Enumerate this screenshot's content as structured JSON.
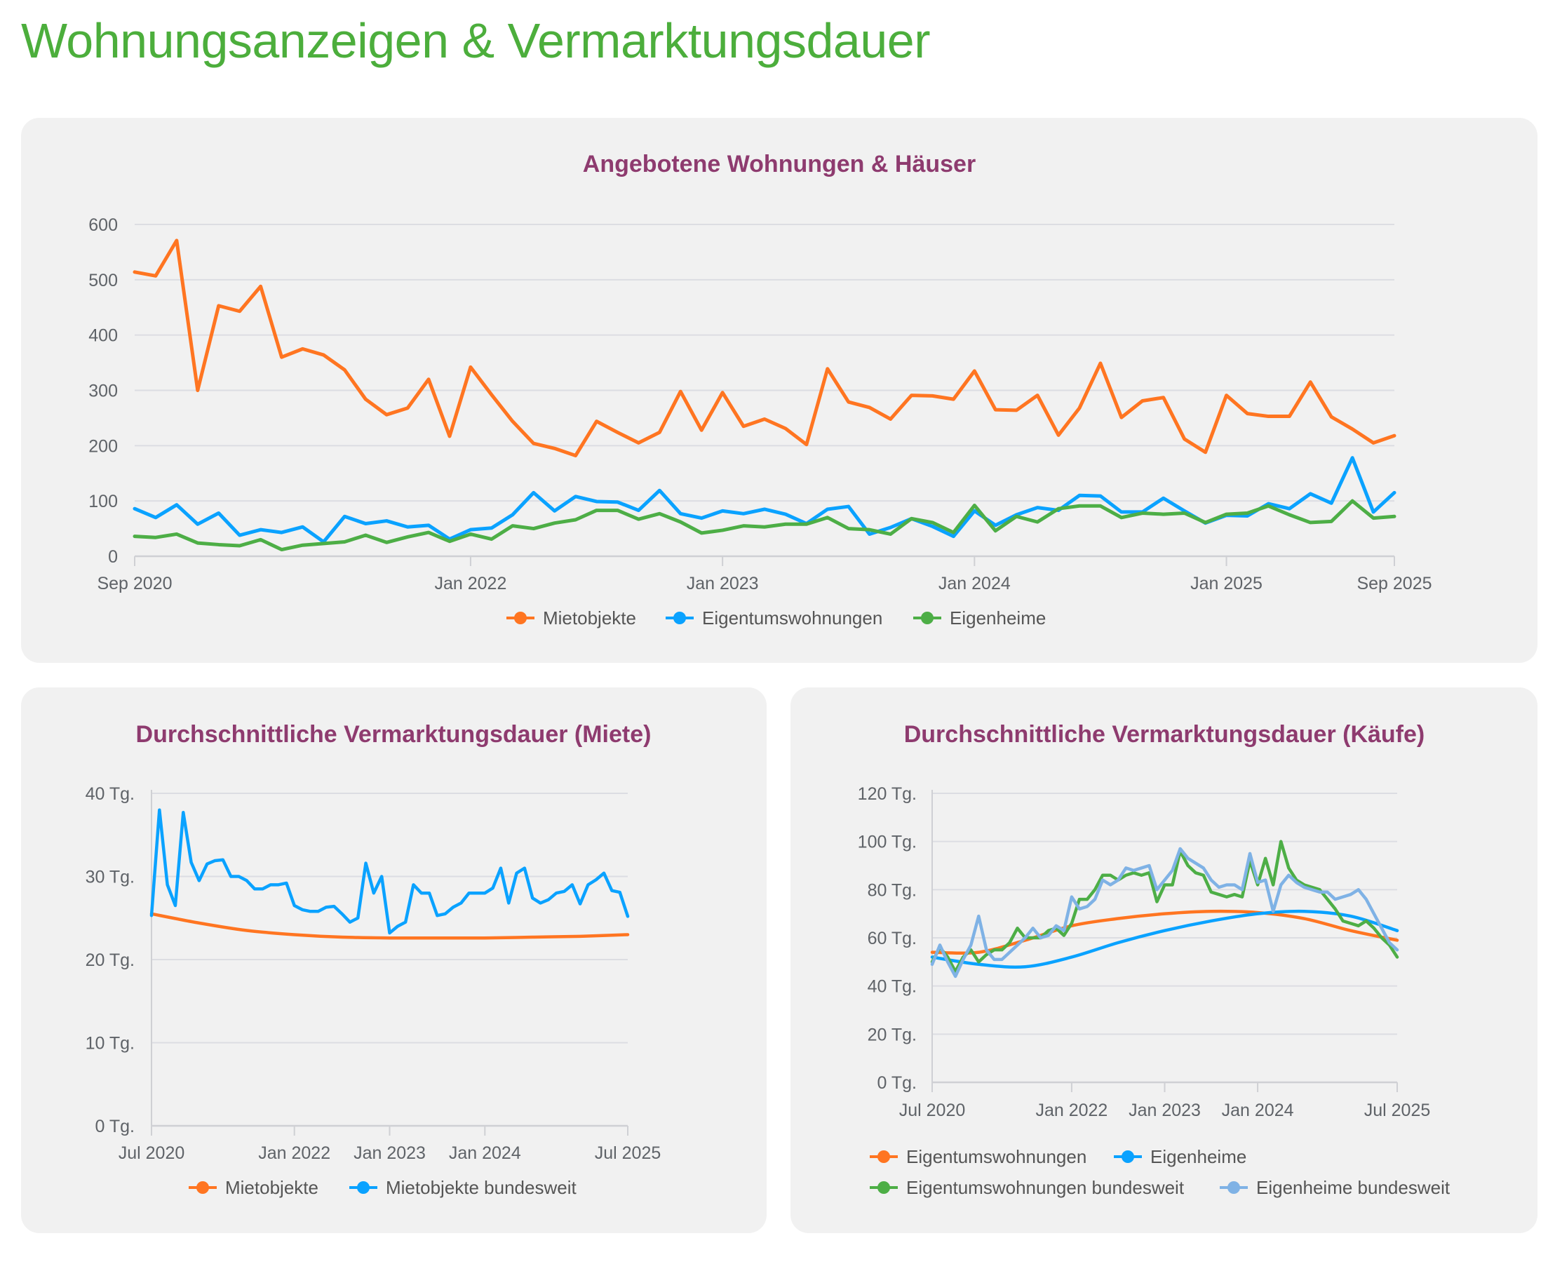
{
  "page": {
    "title": "Wohnungsanzeigen & Vermarktungsdauer"
  },
  "colors": {
    "orange": "#ff7521",
    "blue": "#0aa2ff",
    "green": "#4dae46",
    "light_blue": "#7fb2e5",
    "title": "#4cae3c",
    "chart_title": "#8e3b6f",
    "panel": "#f1f1f1"
  },
  "chart_data": [
    {
      "type": "line",
      "title": "Angebotene Wohnungen & Häuser",
      "x_range": [
        "Sep 2020",
        "Sep 2025"
      ],
      "frequency": "monthly",
      "x_ticks": [
        "Sep 2020",
        "Jan 2022",
        "Jan 2023",
        "Jan 2024",
        "Jan 2025",
        "Sep 2025"
      ],
      "y_ticks": [
        {
          "v": 0,
          "label": "0"
        },
        {
          "v": 100,
          "label": "100"
        },
        {
          "v": 200,
          "label": "200"
        },
        {
          "v": 300,
          "label": "300"
        },
        {
          "v": 400,
          "label": "400"
        },
        {
          "v": 500,
          "label": "500"
        },
        {
          "v": 600,
          "label": "600"
        }
      ],
      "ylim": [
        0,
        600
      ],
      "grid": true,
      "legend": "bottom",
      "series": [
        {
          "name": "Mietobjekte",
          "color": "#ff7521",
          "values": [
            514,
            507,
            571,
            300,
            453,
            443,
            488,
            360,
            375,
            364,
            337,
            284,
            256,
            268,
            320,
            217,
            342,
            292,
            244,
            204,
            195,
            182,
            244,
            224,
            205,
            224,
            298,
            228,
            296,
            235,
            248,
            231,
            202,
            339,
            279,
            269,
            248,
            291,
            290,
            284,
            335,
            265,
            264,
            291,
            219,
            268,
            349,
            251,
            281,
            287,
            212,
            188,
            291,
            258,
            253,
            253,
            315,
            252,
            230,
            205,
            218
          ]
        },
        {
          "name": "Eigentumswohnungen",
          "color": "#0aa2ff",
          "values": [
            86,
            70,
            93,
            58,
            78,
            38,
            48,
            43,
            53,
            26,
            72,
            59,
            64,
            53,
            56,
            31,
            48,
            51,
            75,
            115,
            82,
            108,
            99,
            98,
            83,
            119,
            77,
            69,
            82,
            77,
            85,
            76,
            59,
            85,
            90,
            40,
            52,
            68,
            54,
            36,
            82,
            56,
            75,
            88,
            83,
            110,
            109,
            80,
            80,
            105,
            82,
            60,
            74,
            73,
            95,
            86,
            113,
            96,
            178,
            80,
            115
          ]
        },
        {
          "name": "Eigenheime",
          "color": "#4dae46",
          "values": [
            36,
            34,
            40,
            24,
            21,
            19,
            30,
            12,
            20,
            23,
            26,
            38,
            25,
            35,
            43,
            27,
            40,
            31,
            55,
            50,
            60,
            66,
            83,
            83,
            67,
            77,
            62,
            42,
            47,
            55,
            53,
            58,
            58,
            70,
            50,
            48,
            40,
            68,
            61,
            43,
            92,
            46,
            72,
            62,
            86,
            91,
            91,
            70,
            78,
            76,
            78,
            61,
            76,
            78,
            91,
            75,
            61,
            63,
            100,
            69,
            72
          ]
        }
      ]
    },
    {
      "type": "line",
      "title": "Durchschnittliche Vermarktungsdauer (Miete)",
      "x_range": [
        "Jul 2020",
        "Jul 2025"
      ],
      "frequency": "monthly",
      "x_ticks": [
        "Jul 2020",
        "Jan 2022",
        "Jan 2023",
        "Jan 2024",
        "Jul 2025"
      ],
      "y_ticks": [
        {
          "v": 0,
          "label": "0 Tg."
        },
        {
          "v": 10,
          "label": "10 Tg."
        },
        {
          "v": 20,
          "label": "20 Tg."
        },
        {
          "v": 30,
          "label": "30 Tg."
        },
        {
          "v": 40,
          "label": "40 Tg."
        }
      ],
      "ylim": [
        0,
        40
      ],
      "grid": true,
      "legend": "bottom",
      "series": [
        {
          "name": "Mietobjekte",
          "color": "#ff7521",
          "smooth": true,
          "points": [
            {
              "x": "Jul 2020",
              "y": 25.5
            },
            {
              "x": "Jan 2021",
              "y": 24.4
            },
            {
              "x": "Jul 2021",
              "y": 23.5
            },
            {
              "x": "Jan 2022",
              "y": 23.0
            },
            {
              "x": "Jul 2022",
              "y": 22.7
            },
            {
              "x": "Jan 2023",
              "y": 22.6
            },
            {
              "x": "Jul 2023",
              "y": 22.6
            },
            {
              "x": "Jan 2024",
              "y": 22.6
            },
            {
              "x": "Jul 2024",
              "y": 22.7
            },
            {
              "x": "Jan 2025",
              "y": 22.8
            },
            {
              "x": "Jul 2025",
              "y": 23.0
            }
          ]
        },
        {
          "name": "Mietobjekte bundesweit",
          "color": "#0aa2ff",
          "values": [
            25.3,
            38,
            29,
            26.5,
            37.7,
            31.7,
            29.5,
            31.5,
            31.9,
            32,
            30,
            30,
            29.5,
            28.5,
            28.5,
            29,
            29,
            29.2,
            26.5,
            26,
            25.8,
            25.8,
            26.3,
            26.4,
            25.5,
            24.5,
            25,
            31.6,
            28,
            30,
            23.2,
            24,
            24.5,
            29,
            28,
            28,
            25.3,
            25.5,
            26.3,
            26.8,
            28,
            28,
            28,
            28.6,
            31,
            26.8,
            30.4,
            31,
            27.4,
            26.8,
            27.2,
            28,
            28.2,
            29,
            26.7,
            29,
            29.6,
            30.4,
            28.3,
            28.1,
            25.2
          ]
        }
      ]
    },
    {
      "type": "line",
      "title": "Durchschnittliche Vermarktungsdauer (Käufe)",
      "x_range": [
        "Jul 2020",
        "Jul 2025"
      ],
      "frequency": "monthly",
      "x_ticks": [
        "Jul 2020",
        "Jan 2022",
        "Jan 2023",
        "Jan 2024",
        "Jul 2025"
      ],
      "y_ticks": [
        {
          "v": 0,
          "label": "0 Tg."
        },
        {
          "v": 20,
          "label": "20 Tg."
        },
        {
          "v": 40,
          "label": "40 Tg."
        },
        {
          "v": 60,
          "label": "60 Tg."
        },
        {
          "v": 80,
          "label": "80 Tg."
        },
        {
          "v": 100,
          "label": "100 Tg."
        },
        {
          "v": 120,
          "label": "120 Tg."
        }
      ],
      "ylim": [
        0,
        120
      ],
      "grid": true,
      "legend": "bottom",
      "series": [
        {
          "name": "Eigentumswohnungen",
          "color": "#ff7521",
          "smooth": true,
          "points": [
            {
              "x": "Jul 2020",
              "y": 54
            },
            {
              "x": "Jan 2021",
              "y": 54
            },
            {
              "x": "Jul 2021",
              "y": 59
            },
            {
              "x": "Jan 2022",
              "y": 65
            },
            {
              "x": "Jul 2022",
              "y": 68
            },
            {
              "x": "Jan 2023",
              "y": 70
            },
            {
              "x": "Jul 2023",
              "y": 71
            },
            {
              "x": "Jan 2024",
              "y": 70.5
            },
            {
              "x": "Jul 2024",
              "y": 68
            },
            {
              "x": "Jan 2025",
              "y": 63
            },
            {
              "x": "Jul 2025",
              "y": 59
            }
          ]
        },
        {
          "name": "Eigenheime",
          "color": "#0aa2ff",
          "smooth": true,
          "points": [
            {
              "x": "Jul 2020",
              "y": 52
            },
            {
              "x": "Jan 2021",
              "y": 49
            },
            {
              "x": "Jul 2021",
              "y": 48
            },
            {
              "x": "Jan 2022",
              "y": 52
            },
            {
              "x": "Jul 2022",
              "y": 58
            },
            {
              "x": "Jan 2023",
              "y": 63
            },
            {
              "x": "Jul 2023",
              "y": 67
            },
            {
              "x": "Jan 2024",
              "y": 70
            },
            {
              "x": "Jul 2024",
              "y": 71
            },
            {
              "x": "Jan 2025",
              "y": 69
            },
            {
              "x": "Jul 2025",
              "y": 63
            }
          ]
        },
        {
          "name": "Eigentumswohnungen bundesweit",
          "color": "#4dae46",
          "values": [
            50,
            56,
            52,
            46,
            52,
            55,
            50,
            53,
            55,
            55,
            58,
            64,
            60,
            60,
            60,
            63,
            64,
            61,
            66,
            76,
            76,
            80,
            86,
            86,
            84,
            86,
            87,
            86,
            87,
            75,
            82,
            82,
            96,
            90,
            87,
            86,
            79,
            78,
            77,
            78,
            77,
            92,
            82,
            93,
            82,
            100,
            89,
            84,
            82,
            81,
            80,
            76,
            72,
            67,
            66,
            65,
            67,
            64,
            60,
            57,
            52
          ]
        },
        {
          "name": "Eigenheime bundesweit",
          "color": "#7fb2e5",
          "values": [
            49,
            57,
            50,
            44,
            51,
            57,
            69,
            55,
            51,
            51,
            54,
            57,
            60,
            64,
            60,
            61,
            65,
            63,
            77,
            72,
            73,
            76,
            84,
            82,
            84,
            89,
            88,
            89,
            90,
            80,
            84,
            88,
            97,
            93,
            91,
            89,
            84,
            81,
            82,
            82,
            80,
            95,
            83,
            84,
            71,
            82,
            86,
            83,
            81,
            80,
            79,
            79,
            76,
            77,
            78,
            80,
            76,
            70,
            64,
            58,
            55
          ]
        }
      ]
    }
  ]
}
